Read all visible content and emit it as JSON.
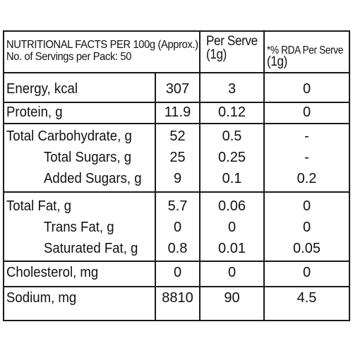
{
  "header": {
    "title_line1": "NUTRITIONAL FACTS PER 100g (Approx.)",
    "title_line2": "No. of Servings per Pack: 50",
    "col_serve_line1": "Per Serve",
    "col_serve_line2": "(1g)",
    "col_rda_line1": "*% RDA Per Serve",
    "col_rda_line2": "(1g)"
  },
  "rows": [
    {
      "label": "Energy, kcal",
      "per100": "307",
      "serve": "3",
      "rda": "0"
    },
    {
      "label": "Protein, g",
      "per100": "11.9",
      "serve": "0.12",
      "rda": "0"
    },
    {
      "label": "Total Carbohydrate, g",
      "per100": "52",
      "serve": "0.5",
      "rda": "-"
    },
    {
      "label": "Total Sugars, g",
      "per100": "25",
      "serve": "0.25",
      "rda": "-"
    },
    {
      "label": "Added Sugars, g",
      "per100": "9",
      "serve": "0.1",
      "rda": "0.2"
    },
    {
      "label": "Total Fat, g",
      "per100": "5.7",
      "serve": "0.06",
      "rda": "0"
    },
    {
      "label": "Trans Fat, g",
      "per100": "0",
      "serve": "0",
      "rda": "0"
    },
    {
      "label": "Saturated Fat, g",
      "per100": "0.8",
      "serve": "0.01",
      "rda": "0.05"
    },
    {
      "label": "Cholesterol, mg",
      "per100": "0",
      "serve": "0",
      "rda": "0"
    },
    {
      "label": "Sodium, mg",
      "per100": "8810",
      "serve": "90",
      "rda": "4.5"
    }
  ]
}
